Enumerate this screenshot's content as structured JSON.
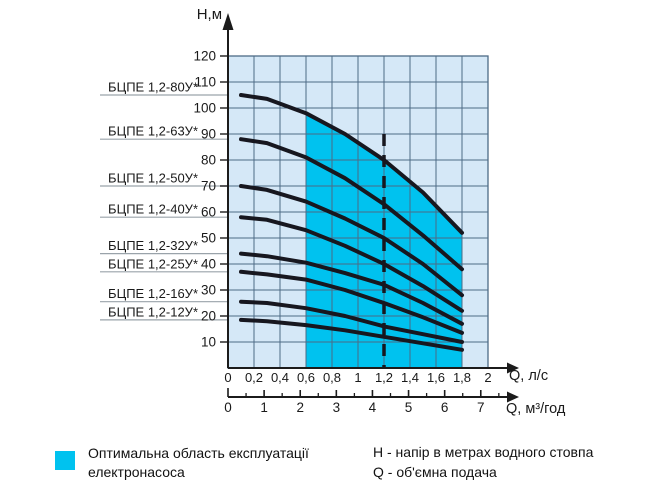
{
  "colors": {
    "background": "#ffffff",
    "plot_background": "#d5e8f7",
    "optimal_region": "#00c2ef",
    "grid_line": "#4d6b86",
    "curve": "#17171f",
    "axis": "#1b1b1b",
    "leader_line": "#9aa3aa",
    "text": "#1a1a1a"
  },
  "chart_data": {
    "type": "line",
    "title": "",
    "grid": true,
    "legend_position": "bottom",
    "y_axis": {
      "label": "Н,м",
      "range": [
        0,
        120
      ],
      "tick_values": [
        120,
        110,
        100,
        90,
        80,
        70,
        60,
        50,
        40,
        30,
        20,
        10
      ]
    },
    "x_axis_primary": {
      "label": "Q, л/с",
      "range": [
        0,
        2
      ],
      "tick_values": [
        0,
        0.2,
        0.4,
        0.6,
        0.8,
        1,
        1.2,
        1.4,
        1.6,
        1.8,
        2
      ],
      "tick_labels": [
        "0",
        "0,2",
        "0,4",
        "0,6",
        "0,8",
        "1",
        "1,2",
        "1,4",
        "1,6",
        "1,8",
        "2"
      ]
    },
    "x_axis_secondary": {
      "label": "Q, м³/год",
      "range": [
        0,
        7
      ],
      "tick_values": [
        0,
        1,
        2,
        3,
        4,
        5,
        6,
        7
      ],
      "tick_labels": [
        "0",
        "1",
        "2",
        "3",
        "4",
        "5",
        "6",
        "7"
      ],
      "minor_tick_step": 0.5
    },
    "dashed_nominal_flow_q": 1.2,
    "optimal_region": {
      "q_start": 0.6,
      "q_end": 1.8,
      "bounded_above_by_series": "БЦПЕ 1,2-80У*"
    },
    "series": [
      {
        "name": "БЦПЕ 1,2-80У*",
        "points": [
          [
            0.1,
            105
          ],
          [
            0.3,
            103.5
          ],
          [
            0.6,
            98
          ],
          [
            0.9,
            90
          ],
          [
            1.2,
            80
          ],
          [
            1.5,
            67.5
          ],
          [
            1.8,
            52
          ]
        ]
      },
      {
        "name": "БЦПЕ 1,2-63У*",
        "points": [
          [
            0.1,
            88
          ],
          [
            0.3,
            86.5
          ],
          [
            0.6,
            81
          ],
          [
            0.9,
            73
          ],
          [
            1.2,
            63
          ],
          [
            1.5,
            51
          ],
          [
            1.8,
            38
          ]
        ]
      },
      {
        "name": "БЦПЕ 1,2-50У*",
        "points": [
          [
            0.1,
            70
          ],
          [
            0.3,
            68.5
          ],
          [
            0.6,
            64
          ],
          [
            0.9,
            57.5
          ],
          [
            1.2,
            50
          ],
          [
            1.5,
            40
          ],
          [
            1.8,
            28
          ]
        ]
      },
      {
        "name": "БЦПЕ 1,2-40У*",
        "points": [
          [
            0.1,
            58
          ],
          [
            0.3,
            57
          ],
          [
            0.6,
            53
          ],
          [
            0.9,
            47
          ],
          [
            1.2,
            40
          ],
          [
            1.5,
            31.5
          ],
          [
            1.8,
            22
          ]
        ]
      },
      {
        "name": "БЦПЕ 1,2-32У*",
        "points": [
          [
            0.1,
            44
          ],
          [
            0.3,
            43
          ],
          [
            0.6,
            40.5
          ],
          [
            0.9,
            36.5
          ],
          [
            1.2,
            32
          ],
          [
            1.5,
            25
          ],
          [
            1.8,
            17
          ]
        ]
      },
      {
        "name": "БЦПЕ 1,2-25У*",
        "points": [
          [
            0.1,
            37
          ],
          [
            0.3,
            36
          ],
          [
            0.6,
            34
          ],
          [
            0.9,
            30
          ],
          [
            1.2,
            25
          ],
          [
            1.5,
            19.5
          ],
          [
            1.8,
            13.5
          ]
        ]
      },
      {
        "name": "БЦПЕ 1,2-16У*",
        "points": [
          [
            0.1,
            25.5
          ],
          [
            0.3,
            25
          ],
          [
            0.6,
            23
          ],
          [
            0.9,
            20
          ],
          [
            1.2,
            16
          ],
          [
            1.5,
            13
          ],
          [
            1.8,
            10
          ]
        ]
      },
      {
        "name": "БЦПЕ 1,2-12У*",
        "points": [
          [
            0.1,
            18.5
          ],
          [
            0.3,
            18
          ],
          [
            0.6,
            16.5
          ],
          [
            0.9,
            14.5
          ],
          [
            1.2,
            12
          ],
          [
            1.5,
            9.5
          ],
          [
            1.8,
            7
          ]
        ]
      }
    ]
  },
  "legend": {
    "optimal_area_label": "Оптимальна область експлуатації електронасоса"
  },
  "notes": {
    "h_definition": "Н - напір в метрах водного стовпа",
    "q_definition": "Q - об'ємна подача"
  }
}
